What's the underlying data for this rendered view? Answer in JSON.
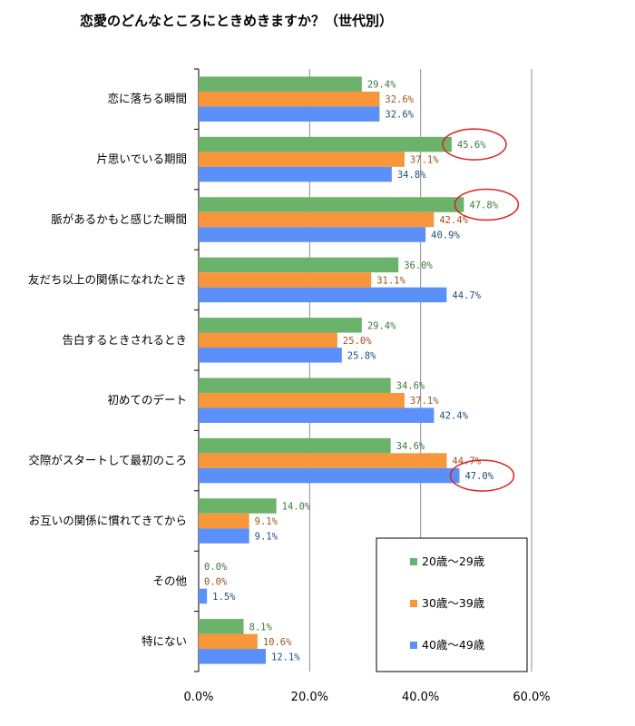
{
  "chart_data": {
    "type": "bar",
    "orientation": "horizontal",
    "title": "恋愛のどんなところにときめきますか？（世代別）",
    "categories": [
      "恋に落ちる瞬間",
      "片思いでいる期間",
      "脈があるかもと感じた瞬間",
      "友だち以上の関係になれたとき",
      "告白するときされるとき",
      "初めてのデート",
      "交際がスタートして最初のころ",
      "お互いの関係に慣れてきてから",
      "その他",
      "特にない"
    ],
    "series": [
      {
        "name": "20歳～29歳",
        "color": "#6bb26b",
        "label_color": "#3c7a3c",
        "values": [
          29.4,
          45.6,
          47.8,
          36.0,
          29.4,
          34.6,
          34.6,
          14.0,
          0.0,
          8.1
        ]
      },
      {
        "name": "30歳～39歳",
        "color": "#f7963a",
        "label_color": "#a0521a",
        "values": [
          32.6,
          37.1,
          42.4,
          31.1,
          25.0,
          37.1,
          44.7,
          9.1,
          0.0,
          10.6
        ]
      },
      {
        "name": "40歳～49歳",
        "color": "#5b8ff9",
        "label_color": "#1f4e79",
        "values": [
          32.6,
          34.8,
          40.9,
          44.7,
          25.8,
          42.4,
          47.0,
          9.1,
          1.5,
          12.1
        ]
      }
    ],
    "xlim": [
      0,
      60
    ],
    "xticks": [
      "0.0%",
      "20.0%",
      "40.0%",
      "60.0%"
    ],
    "xtick_values": [
      0,
      20,
      40,
      60
    ],
    "value_suffix": "%",
    "grid": true,
    "legend_position": "bottom-right",
    "highlights": [
      {
        "category_index": 1,
        "series_index": 0
      },
      {
        "category_index": 2,
        "series_index": 0
      },
      {
        "category_index": 6,
        "series_index": 2
      }
    ],
    "highlight_color": "#e02020"
  }
}
